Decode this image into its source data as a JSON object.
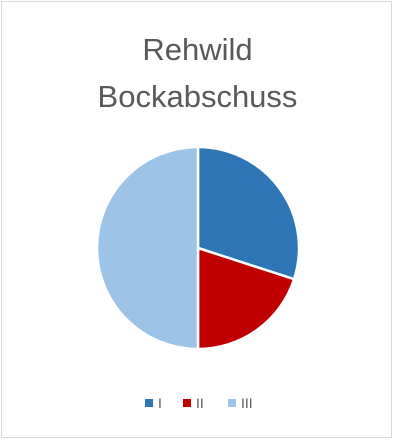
{
  "chart_data": {
    "type": "pie",
    "title_lines": [
      "Rehwild",
      "Bockabschuss"
    ],
    "categories": [
      "I",
      "II",
      "III"
    ],
    "values": [
      30,
      20,
      50
    ],
    "colors": [
      "#2e75b6",
      "#c00000",
      "#9dc3e6"
    ],
    "legend_position": "bottom"
  }
}
